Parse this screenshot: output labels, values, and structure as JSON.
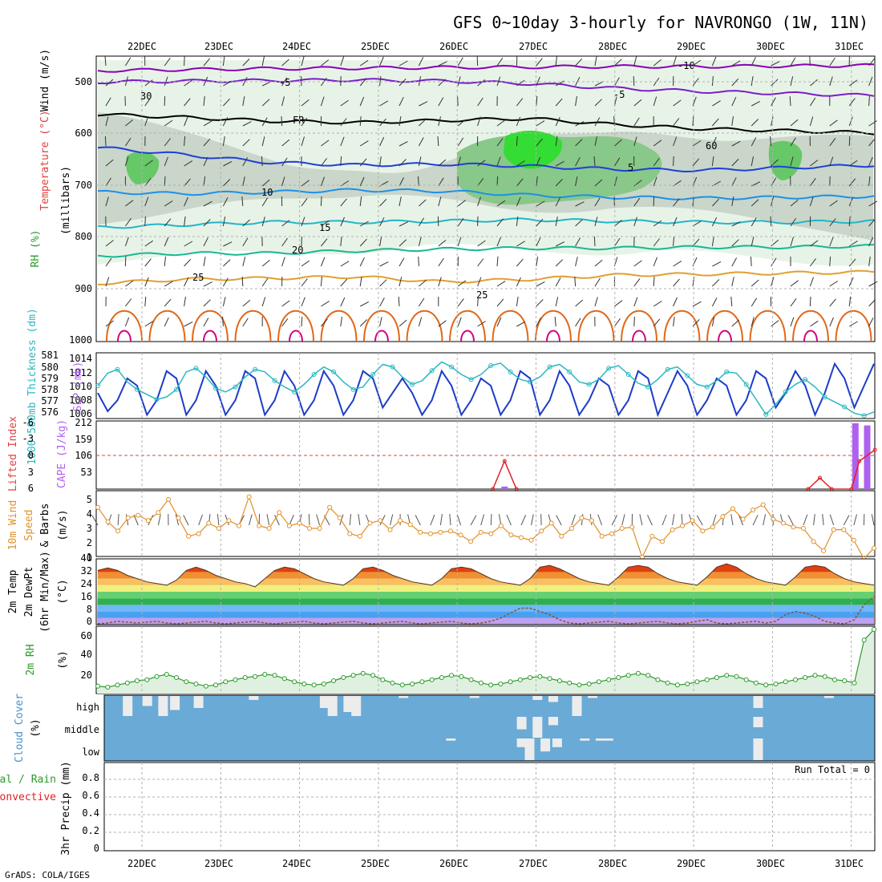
{
  "title": "GFS 0~10day 3-hourly for NAVRONGO (1W, 11N)",
  "footer": "GrADS: COLA/IGES",
  "dates": [
    "22DEC",
    "23DEC",
    "24DEC",
    "25DEC",
    "26DEC",
    "27DEC",
    "28DEC",
    "29DEC",
    "30DEC",
    "31DEC"
  ],
  "colors": {
    "purple": "#8a00b8",
    "violet": "#7a1ec8",
    "blue": "#1f3fd8",
    "lightblue": "#1e90e8",
    "cyan": "#22b6c8",
    "teal": "#18b890",
    "orange": "#e0a030",
    "darkorange": "#e06818",
    "magenta": "#d00080",
    "slp": "#1e3cc8",
    "thick": "#2ab8c0",
    "cape": "#b060f0",
    "li": "#e02020",
    "wind": "#e0902a",
    "rh": "#2a9a2a",
    "cloud": "#6aaad6",
    "cloudfill": "#ececec"
  },
  "chart_data": [
    {
      "id": "upper-air",
      "type": "heatmap",
      "ylabel": "(millibars)",
      "side_labels": [
        "Wind (m/s)",
        "Temperature (°C)",
        "RH (%)"
      ],
      "yticks": [
        "500",
        "600",
        "700",
        "800",
        "900",
        "1000"
      ],
      "ylim": [
        450,
        1000
      ],
      "contour_labels": [
        "-10",
        "-5",
        "FR",
        "-5",
        "5",
        "10",
        "15",
        "20",
        "25",
        "25",
        "30",
        "60"
      ],
      "isotherms": [
        {
          "label": "-10",
          "p": [
            478,
            476,
            474,
            473,
            472,
            471,
            470,
            470,
            469,
            468
          ]
        },
        {
          "label": "-5",
          "p": [
            500,
            498,
            497,
            496,
            498,
            503,
            512,
            518,
            522,
            526
          ]
        },
        {
          "label": "FR",
          "p": [
            562,
            568,
            575,
            578,
            574,
            570,
            582,
            590,
            594,
            598
          ]
        },
        {
          "label": "5",
          "p": [
            626,
            640,
            655,
            660,
            658,
            662,
            668,
            670,
            665,
            660
          ]
        },
        {
          "label": "10",
          "p": [
            712,
            715,
            712,
            708,
            710,
            718,
            722,
            724,
            722,
            720
          ]
        },
        {
          "label": "15",
          "p": [
            780,
            775,
            770,
            770,
            768,
            765,
            768,
            770,
            770,
            768
          ]
        },
        {
          "label": "20",
          "p": [
            835,
            830,
            830,
            825,
            822,
            820,
            820,
            818,
            818,
            816
          ]
        },
        {
          "label": "25",
          "p": [
            888,
            880,
            878,
            875,
            885,
            880,
            872,
            870,
            868,
            866
          ]
        }
      ]
    },
    {
      "id": "slp-thickness",
      "type": "line",
      "ylabel": "SLP (mb)",
      "ylabel2": "1000-500mb Thickness (dm)",
      "left_ticks": [
        "581",
        "580",
        "579",
        "578",
        "577",
        "576"
      ],
      "right_ticks": [
        "1014",
        "1012",
        "1010",
        "1008",
        "1006"
      ],
      "ylim": [
        1005.5,
        1014.5
      ],
      "series": [
        {
          "name": "SLP",
          "values": [
            1009,
            1006.5,
            1008,
            1011,
            1010,
            1006,
            1008,
            1012,
            1011,
            1006,
            1008,
            1012,
            1010,
            1006,
            1008,
            1012,
            1011,
            1006,
            1008,
            1012,
            1010,
            1006,
            1008,
            1012,
            1010,
            1006,
            1008,
            1012,
            1011,
            1007,
            1009,
            1011,
            1009,
            1006,
            1008,
            1012,
            1010,
            1006,
            1008,
            1011,
            1010,
            1006,
            1008,
            1012,
            1011,
            1006,
            1008,
            1012,
            1010,
            1006,
            1008,
            1011,
            1010,
            1006,
            1008,
            1012,
            1011,
            1006,
            1009,
            1012,
            1010,
            1006,
            1008,
            1011,
            1010,
            1006,
            1008,
            1012,
            1011,
            1007,
            1009,
            1012,
            1010,
            1006,
            1009,
            1013,
            1011,
            1007,
            1010,
            1013
          ]
        },
        {
          "name": "Thickness",
          "values": [
            578.5,
            579.5,
            579.8,
            578.8,
            578.2,
            577.8,
            577.4,
            577.6,
            578.2,
            579.6,
            579.9,
            579.2,
            578.3,
            578.0,
            578.4,
            579.2,
            579.8,
            579.6,
            578.9,
            578.4,
            578.0,
            578.6,
            579.4,
            580.0,
            579.6,
            578.8,
            578.2,
            578.4,
            579.4,
            580.2,
            580.0,
            579.2,
            578.6,
            578.9,
            579.7,
            580.4,
            580.0,
            579.4,
            579.0,
            579.4,
            580.1,
            580.3,
            579.6,
            579.0,
            578.8,
            579.2,
            580.0,
            580.2,
            579.6,
            578.8,
            578.6,
            579.0,
            579.9,
            580.1,
            579.4,
            578.7,
            578.4,
            579.0,
            579.8,
            580.0,
            579.3,
            578.6,
            578.4,
            578.9,
            579.6,
            579.5,
            578.6,
            577.4,
            576.2,
            577.0,
            578.0,
            578.6,
            579.0,
            578.4,
            577.6,
            577.2,
            576.8,
            576.3,
            576.1,
            576.4
          ]
        }
      ]
    },
    {
      "id": "cape-li",
      "type": "bar",
      "ylabel": "CAPE (J/kg)",
      "ylabel2": "Lifted Index",
      "left_ticks": [
        "-6",
        "-3",
        "0",
        "3",
        "6"
      ],
      "right_ticks": [
        "212",
        "159",
        "106",
        "53"
      ],
      "ylim": [
        0,
        212
      ],
      "cape": [
        {
          "day": 4.6,
          "value": 8
        },
        {
          "day": 9.05,
          "value": 205
        },
        {
          "day": 9.2,
          "value": 198
        }
      ],
      "lifted_index": [
        {
          "day": 4.45,
          "value": 6
        },
        {
          "day": 4.6,
          "value": 1
        },
        {
          "day": 4.75,
          "value": 6
        },
        {
          "day": 8.45,
          "value": 6
        },
        {
          "day": 8.6,
          "value": 4
        },
        {
          "day": 8.75,
          "value": 6
        },
        {
          "day": 9.0,
          "value": 6
        },
        {
          "day": 9.1,
          "value": 1
        },
        {
          "day": 9.3,
          "value": -1
        }
      ]
    },
    {
      "id": "wind10m",
      "type": "line",
      "ylabel": "(m/s)",
      "side_labels": [
        "10m Wind",
        "Speed",
        "& Barbs"
      ],
      "yticks": [
        "5",
        "4",
        "3",
        "2",
        "1"
      ],
      "ylim": [
        0.5,
        5.5
      ],
      "series": [
        {
          "name": "10m wind speed",
          "values": [
            4.6,
            3.5,
            2.8,
            3.8,
            4.0,
            3.6,
            4.2,
            5.2,
            3.8,
            2.4,
            2.6,
            3.4,
            3.0,
            3.6,
            3.2,
            5.4,
            3.2,
            3.0,
            4.2,
            3.2,
            3.4,
            3.0,
            3.0,
            4.6,
            3.8,
            2.6,
            2.4,
            3.4,
            3.6,
            2.9,
            3.6,
            3.3,
            2.7,
            2.6,
            2.7,
            2.8,
            2.5,
            2.0,
            2.7,
            2.6,
            3.2,
            2.5,
            2.3,
            2.1,
            2.8,
            3.4,
            2.4,
            3.0,
            3.8,
            3.6,
            2.4,
            2.6,
            3.0,
            3.1,
            0.8,
            2.4,
            2.0,
            2.9,
            3.2,
            3.6,
            2.8,
            3.1,
            3.9,
            4.5,
            3.7,
            4.4,
            4.8,
            3.7,
            3.4,
            3.1,
            3.0,
            2.0,
            1.3,
            2.9,
            2.9,
            2.1,
            0.7,
            1.5
          ]
        }
      ]
    },
    {
      "id": "temp2m",
      "type": "area",
      "ylabel": "(°C)",
      "side_labels": [
        "2m Temp",
        "2m DewPt",
        "(6hr Min/Max)"
      ],
      "yticks": [
        "40",
        "32",
        "24",
        "16",
        "8",
        "0"
      ],
      "ylim": [
        0,
        40
      ],
      "series": [
        {
          "name": "2m Temp",
          "values": [
            33,
            34.5,
            33,
            30,
            28,
            26,
            25,
            24,
            27,
            33,
            35,
            33,
            30,
            28,
            26,
            25,
            23,
            28,
            33,
            35,
            34,
            31,
            28,
            26,
            25,
            24,
            28,
            34,
            35,
            33,
            30,
            28,
            26,
            25,
            24,
            28,
            34,
            35,
            34,
            31,
            28,
            26,
            25,
            24,
            28,
            35,
            36,
            34,
            31,
            28,
            26,
            25,
            24,
            29,
            35,
            36,
            35,
            31,
            28,
            26,
            25,
            24,
            29,
            35,
            37,
            35,
            31,
            28,
            26,
            25,
            24,
            29,
            35,
            36,
            35,
            31,
            28,
            26,
            25,
            24
          ]
        },
        {
          "name": "2m DewPt",
          "values": [
            0.5,
            1,
            2,
            1.5,
            1,
            1.5,
            2,
            1,
            0.5,
            1,
            1.5,
            2,
            1,
            0.5,
            1,
            1.5,
            2,
            1,
            0.5,
            1,
            1.5,
            2,
            1,
            0.5,
            1,
            1.5,
            2,
            1,
            0.5,
            1,
            1.5,
            2,
            1,
            0.5,
            1,
            1.5,
            2,
            1,
            0.5,
            1,
            2,
            4,
            7,
            10,
            10,
            8,
            6,
            3,
            1,
            0.5,
            1,
            1.5,
            2,
            1,
            0.5,
            1,
            1.5,
            2,
            1,
            0.5,
            1,
            2,
            3,
            1,
            0.5,
            1,
            1.5,
            2,
            1,
            2,
            6,
            8,
            7,
            5,
            2,
            1,
            0.5,
            3,
            12,
            17
          ]
        }
      ]
    },
    {
      "id": "rh2m",
      "type": "line",
      "ylabel": "(%)",
      "side_labels": [
        "2m RH"
      ],
      "yticks": [
        "60",
        "40",
        "20"
      ],
      "ylim": [
        5,
        68
      ],
      "series": [
        {
          "name": "2m RH",
          "values": [
            12,
            11,
            13,
            15,
            17,
            18,
            21,
            23,
            20,
            16,
            14,
            12,
            13,
            16,
            18,
            20,
            21,
            23,
            22,
            19,
            16,
            14,
            13,
            14,
            17,
            20,
            22,
            24,
            22,
            18,
            15,
            13,
            14,
            16,
            18,
            20,
            22,
            21,
            18,
            15,
            13,
            14,
            16,
            18,
            20,
            21,
            19,
            17,
            15,
            13,
            14,
            16,
            18,
            20,
            22,
            24,
            22,
            18,
            15,
            13,
            14,
            16,
            18,
            20,
            22,
            21,
            18,
            15,
            13,
            14,
            16,
            18,
            20,
            22,
            21,
            18,
            17,
            15,
            55,
            65
          ]
        }
      ]
    },
    {
      "id": "cloud-cover",
      "type": "bar",
      "ylabel": "(%)",
      "side_labels": [
        "Cloud Cover"
      ],
      "yticks": [
        "high",
        "middle",
        "low"
      ],
      "series": [
        {
          "name": "high",
          "values": [
            {
              "day": 0.0,
              "v": 1
            },
            {
              "day": 0.25,
              "v": 0.5
            },
            {
              "day": 0.45,
              "v": 1
            },
            {
              "day": 0.6,
              "v": 0.7
            },
            {
              "day": 0.9,
              "v": 0.6
            },
            {
              "day": 1.6,
              "v": 0.2
            },
            {
              "day": 2.5,
              "v": 0.6
            },
            {
              "day": 2.6,
              "v": 1
            },
            {
              "day": 2.8,
              "v": 0.8
            },
            {
              "day": 2.9,
              "v": 1
            },
            {
              "day": 3.5,
              "v": 0.1
            },
            {
              "day": 4.4,
              "v": 0.1
            },
            {
              "day": 5.2,
              "v": 0.2
            },
            {
              "day": 5.4,
              "v": 0.3
            },
            {
              "day": 5.7,
              "v": 1
            },
            {
              "day": 5.9,
              "v": 0.1
            },
            {
              "day": 8.0,
              "v": 0.6
            },
            {
              "day": 8.9,
              "v": 0.1
            }
          ]
        },
        {
          "name": "middle",
          "values": [
            {
              "day": 5.0,
              "v": 0.6
            },
            {
              "day": 5.2,
              "v": 1
            },
            {
              "day": 5.4,
              "v": 0.4
            },
            {
              "day": 8.0,
              "v": 0.5
            }
          ]
        },
        {
          "name": "low",
          "values": [
            {
              "day": 4.1,
              "v": 0.1
            },
            {
              "day": 5.0,
              "v": 0.4
            },
            {
              "day": 5.1,
              "v": 1
            },
            {
              "day": 5.3,
              "v": 0.6
            },
            {
              "day": 5.45,
              "v": 0.4
            },
            {
              "day": 5.8,
              "v": 0.1
            },
            {
              "day": 6.0,
              "v": 0.1
            },
            {
              "day": 6.1,
              "v": 0.1
            },
            {
              "day": 8.0,
              "v": 1
            }
          ]
        }
      ]
    },
    {
      "id": "precip",
      "type": "bar",
      "ylabel": "3hr Precip (mm)",
      "side_labels": [
        "Total / Rain",
        "Convective"
      ],
      "yticks": [
        "0.8",
        "0.6",
        "0.4",
        "0.2",
        "0"
      ],
      "ylim": [
        0,
        1
      ],
      "annotation": "Run Total = 0",
      "values": []
    }
  ]
}
